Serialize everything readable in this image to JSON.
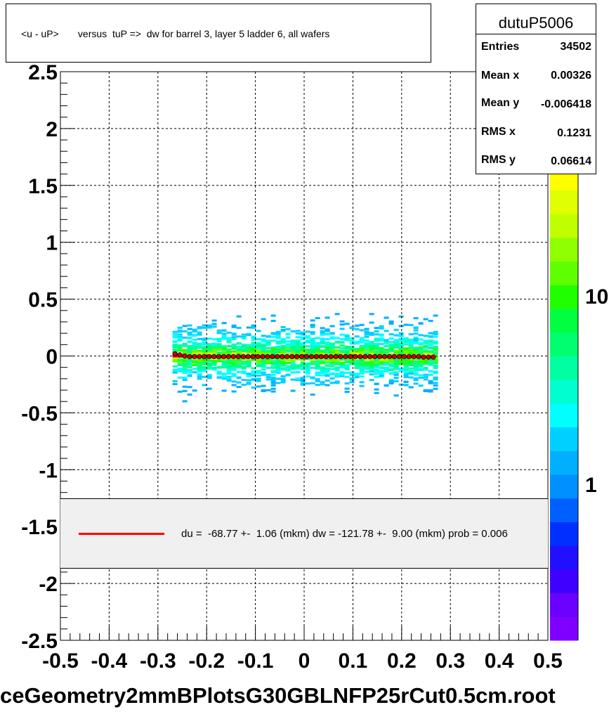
{
  "title": "<u - uP>       versus  tuP =>  dw for barrel 3, layer 5 ladder 6, all wafers",
  "stats": {
    "name": "dutuP5006",
    "rows": [
      {
        "label": "Entries",
        "value": "34502"
      },
      {
        "label": "Mean x",
        "value": "0.00326"
      },
      {
        "label": "Mean y",
        "value": "-0.006418"
      },
      {
        "label": "RMS x",
        "value": "0.1231"
      },
      {
        "label": "RMS y",
        "value": "0.06614"
      }
    ]
  },
  "fit_text": "du =  -68.77 +-  1.06 (mkm) dw = -121.78 +-  9.00 (mkm) prob = 0.006",
  "filename": "ceGeometry2mmBPlotsG30GBLNFP25rCut0.5cm.root",
  "colors": {
    "fit_line": "#ff0000",
    "profile_marker": "#cc0000",
    "palette": [
      "#8000ff",
      "#6a00ff",
      "#4000ff",
      "#2010ff",
      "#0030ff",
      "#0060ff",
      "#0090ff",
      "#00b0ff",
      "#00d0ff",
      "#00ffff",
      "#00ffd0",
      "#00ffa0",
      "#00ff70",
      "#00ff40",
      "#20ff00",
      "#60ff00",
      "#90ff00",
      "#c0ff00",
      "#e0ff00",
      "#ffff00",
      "#ffd000",
      "#ffa000",
      "#ff7000",
      "#ff4000"
    ]
  },
  "chart_data": {
    "type": "heatmap",
    "title": "<u - uP>       versus  tuP =>  dw for barrel 3, layer 5 ladder 6, all wafers",
    "xlim": [
      -0.5,
      0.5
    ],
    "ylim": [
      -2.5,
      2.5
    ],
    "x_ticks": [
      "-0.5",
      "-0.4",
      "-0.3",
      "-0.2",
      "-0.1",
      "0",
      "0.1",
      "0.2",
      "0.3",
      "0.4",
      "0.5"
    ],
    "y_ticks": [
      "-2.5",
      "-2",
      "-1.5",
      "-1",
      "-0.5",
      "0",
      "0.5",
      "1",
      "1.5",
      "2",
      "2.5"
    ],
    "z_scale": "log",
    "z_ticks": [
      "1",
      "10"
    ],
    "z_partial_label": "0",
    "grid": true,
    "profile": {
      "name": "profile",
      "x": [
        -0.265,
        -0.255,
        -0.245,
        -0.235,
        -0.225,
        -0.215,
        -0.205,
        -0.195,
        -0.185,
        -0.175,
        -0.165,
        -0.155,
        -0.145,
        -0.135,
        -0.125,
        -0.115,
        -0.105,
        -0.095,
        -0.085,
        -0.075,
        -0.065,
        -0.055,
        -0.045,
        -0.035,
        -0.025,
        -0.015,
        -0.005,
        0.005,
        0.015,
        0.025,
        0.035,
        0.045,
        0.055,
        0.065,
        0.075,
        0.085,
        0.095,
        0.105,
        0.115,
        0.125,
        0.135,
        0.145,
        0.155,
        0.165,
        0.175,
        0.185,
        0.195,
        0.205,
        0.215,
        0.225,
        0.235,
        0.245,
        0.255,
        0.265
      ],
      "y": [
        0.02,
        0.01,
        0.0,
        -0.005,
        -0.005,
        -0.005,
        -0.005,
        -0.005,
        -0.005,
        -0.005,
        -0.005,
        -0.005,
        -0.005,
        -0.005,
        -0.005,
        -0.005,
        -0.005,
        -0.005,
        -0.005,
        -0.005,
        -0.005,
        -0.005,
        -0.005,
        -0.005,
        -0.005,
        -0.005,
        -0.005,
        -0.005,
        -0.005,
        -0.005,
        -0.005,
        -0.005,
        -0.005,
        -0.005,
        -0.005,
        -0.005,
        -0.005,
        -0.005,
        -0.005,
        -0.005,
        -0.005,
        -0.005,
        -0.005,
        -0.005,
        -0.005,
        -0.005,
        -0.005,
        -0.005,
        -0.005,
        -0.005,
        -0.005,
        -0.01,
        -0.01,
        -0.01
      ]
    },
    "fit_line": {
      "x": [
        -0.27,
        0.27
      ],
      "y": [
        -0.004,
        -0.008
      ]
    }
  }
}
